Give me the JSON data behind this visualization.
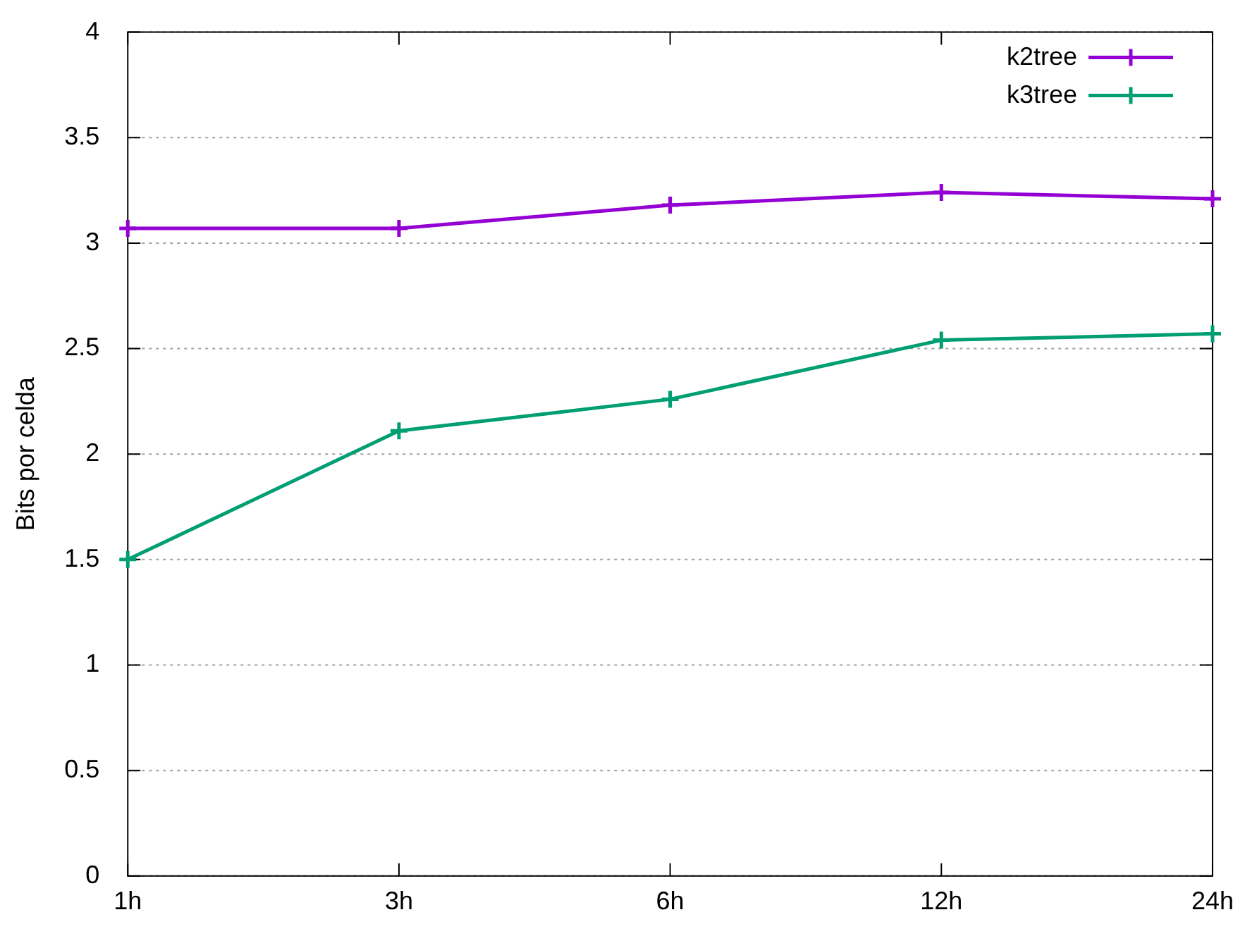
{
  "chart_data": {
    "type": "line",
    "ylabel": "Bits por celda",
    "categories": [
      "1h",
      "3h",
      "6h",
      "12h",
      "24h"
    ],
    "series": [
      {
        "name": "k2tree",
        "color": "#9400d3",
        "values": [
          3.07,
          3.07,
          3.18,
          3.24,
          3.21
        ]
      },
      {
        "name": "k3tree",
        "color": "#009e73",
        "values": [
          1.5,
          2.11,
          2.26,
          2.54,
          2.57
        ]
      }
    ],
    "ylim": [
      0,
      4
    ],
    "yticks": [
      0,
      0.5,
      1,
      1.5,
      2,
      2.5,
      3,
      3.5,
      4
    ],
    "grid": "y",
    "legend": "top right",
    "marker": "cross",
    "line_style": "solid"
  }
}
